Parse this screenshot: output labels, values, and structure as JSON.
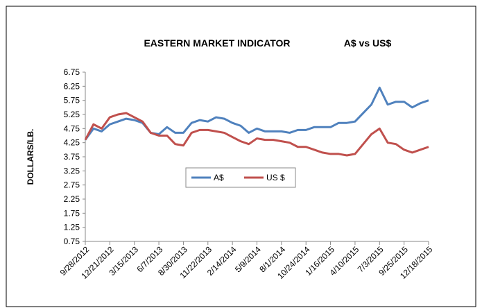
{
  "chart_data": {
    "type": "line",
    "title": "EASTERN MARKET INDICATOR",
    "subtitle": "A$ vs US$",
    "y_label": "DOLLARS/LB.",
    "categories": [
      "9/28/2012",
      null,
      null,
      "12/21/2012",
      null,
      null,
      "3/15/2013",
      null,
      null,
      "6/7/2013",
      null,
      null,
      "8/30/2013",
      null,
      null,
      "11/22/2013",
      null,
      null,
      "2/14/2014",
      null,
      null,
      "5/9/2014",
      null,
      null,
      "8/1/2014",
      null,
      null,
      "10/24/2014",
      null,
      null,
      "1/16/2015",
      null,
      null,
      "4/10/2015",
      null,
      null,
      "7/3/2015",
      null,
      null,
      "9/25/2015",
      null,
      null,
      "12/18/2015"
    ],
    "series": [
      {
        "name": "A$",
        "color": "#4f81bd",
        "values": [
          4.35,
          4.75,
          4.65,
          4.9,
          5.0,
          5.1,
          5.05,
          4.95,
          4.6,
          4.55,
          4.8,
          4.6,
          4.6,
          4.95,
          5.05,
          5.0,
          5.15,
          5.1,
          4.95,
          4.85,
          4.6,
          4.75,
          4.65,
          4.65,
          4.65,
          4.6,
          4.7,
          4.7,
          4.8,
          4.8,
          4.8,
          4.95,
          4.95,
          5.0,
          5.3,
          5.6,
          6.2,
          5.6,
          5.7,
          5.7,
          5.5,
          5.65,
          5.75
        ]
      },
      {
        "name": "US $",
        "color": "#c0504d",
        "values": [
          4.35,
          4.9,
          4.75,
          5.15,
          5.25,
          5.3,
          5.15,
          5.0,
          4.6,
          4.5,
          4.5,
          4.2,
          4.15,
          4.6,
          4.7,
          4.7,
          4.65,
          4.6,
          4.45,
          4.3,
          4.2,
          4.4,
          4.35,
          4.35,
          4.3,
          4.25,
          4.1,
          4.1,
          4.0,
          3.9,
          3.85,
          3.85,
          3.8,
          3.85,
          4.2,
          4.55,
          4.75,
          4.25,
          4.2,
          4.0,
          3.9,
          4.0,
          4.1
        ]
      }
    ],
    "ylim": [
      0.75,
      6.75
    ],
    "yticks": [
      0.75,
      1.25,
      1.75,
      2.25,
      2.75,
      3.25,
      3.75,
      4.25,
      4.75,
      5.25,
      5.75,
      6.25,
      6.75
    ],
    "grid": false,
    "legend": "center"
  }
}
